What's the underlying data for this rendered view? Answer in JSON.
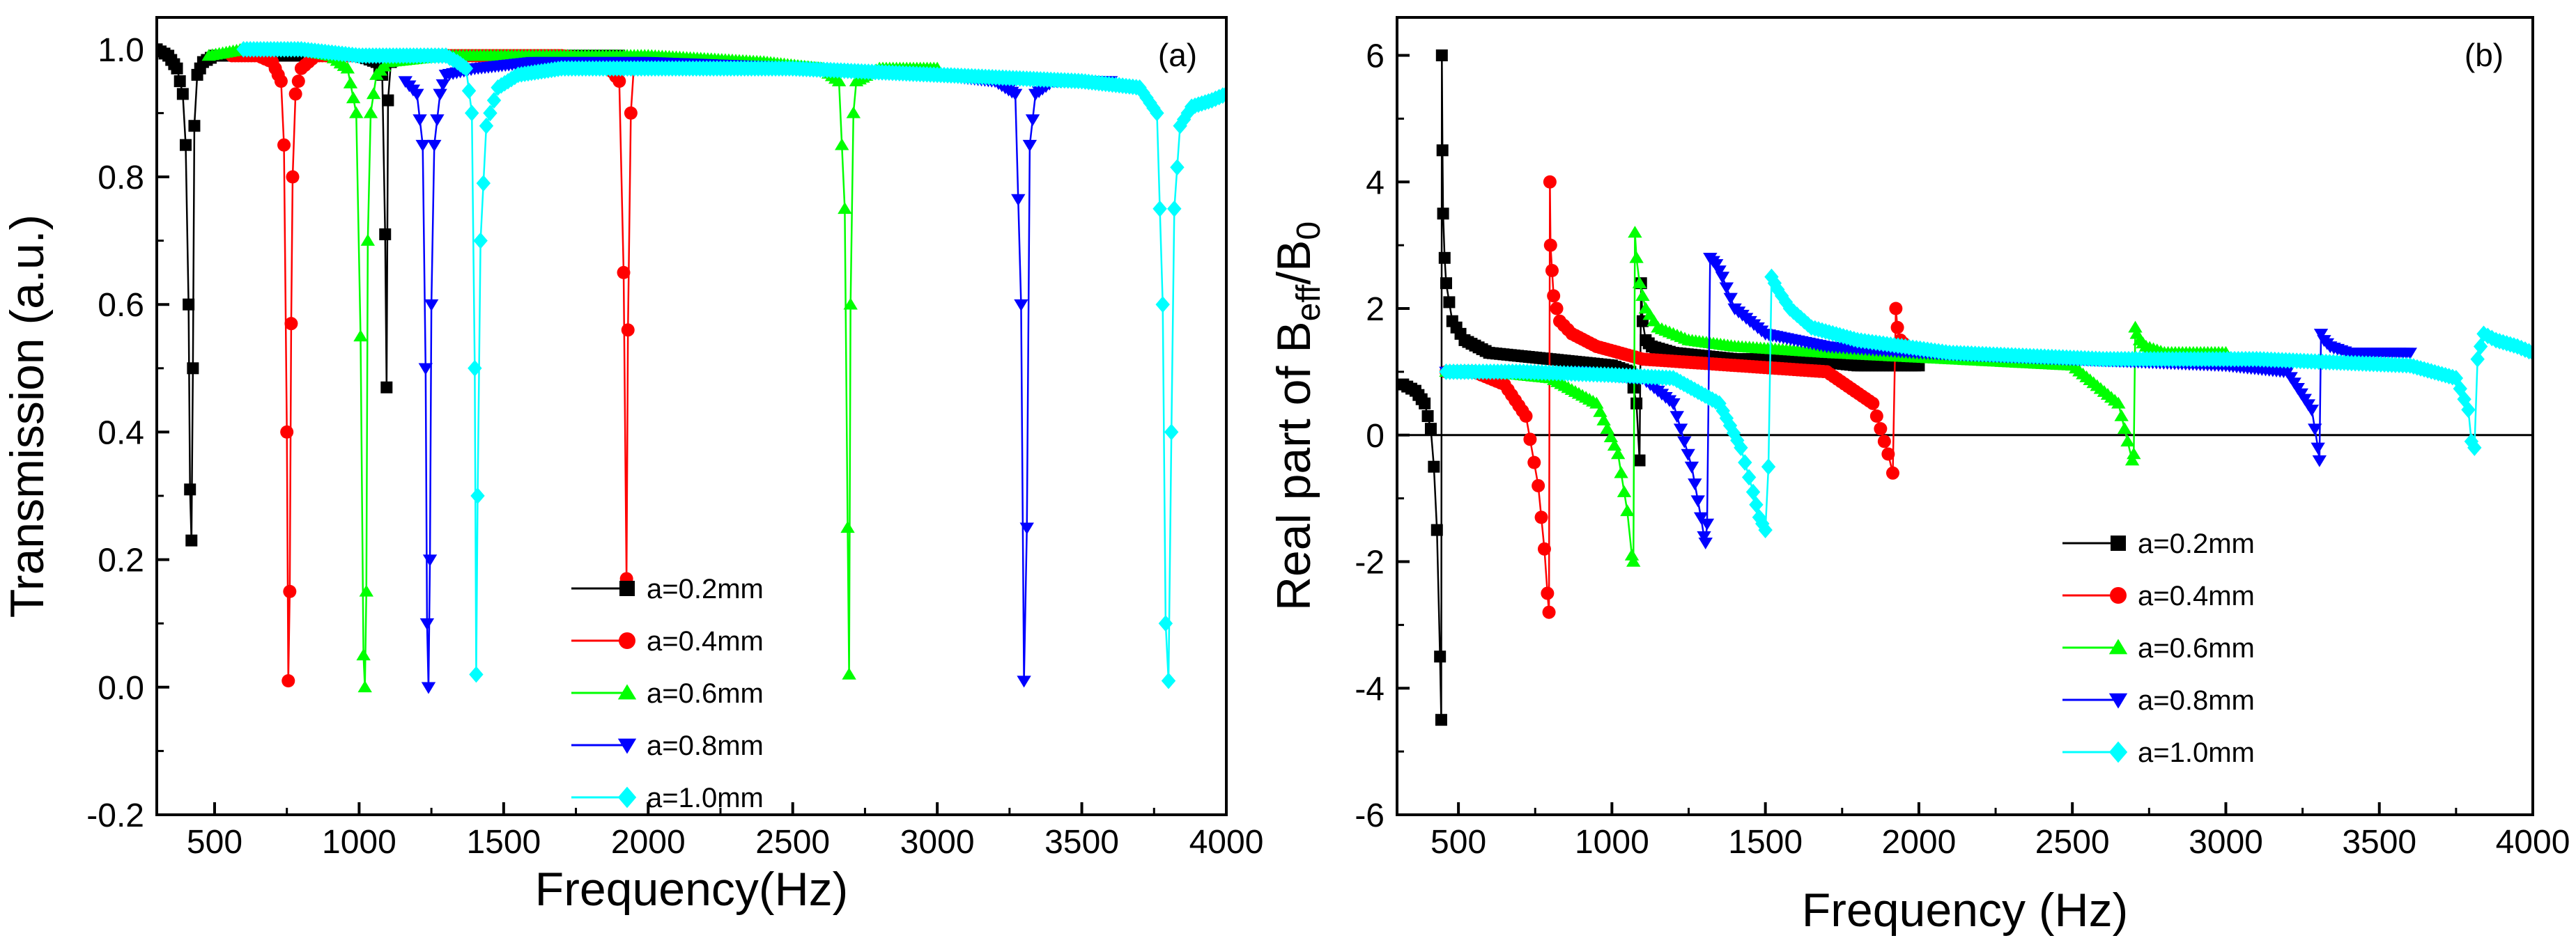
{
  "chart_data": [
    {
      "type": "line",
      "panel_label": "(a)",
      "xlabel": "Frequency(Hz)",
      "ylabel": "Transmission (a.u.)",
      "xlim": [
        300,
        4000
      ],
      "ylim": [
        -0.2,
        1.05
      ],
      "xticks": [
        500,
        1000,
        1500,
        2000,
        2500,
        3000,
        3500,
        4000
      ],
      "yticks": [
        -0.2,
        0.0,
        0.2,
        0.4,
        0.6,
        0.8,
        1.0
      ],
      "ytick_labels": [
        "-0.2",
        "0.0",
        "0.2",
        "0.4",
        "0.6",
        "0.8",
        "1.0"
      ],
      "grid": false,
      "legend_position": "bottom-center",
      "series": [
        {
          "name": "a=0.2mm",
          "color": "#000000",
          "marker": "square",
          "x": [
            300,
            340,
            370,
            390,
            400,
            410,
            415,
            420,
            425,
            430,
            440,
            460,
            500,
            600,
            800,
            1000,
            1060,
            1080,
            1090,
            1095,
            1100,
            1110,
            1130,
            1150,
            1200,
            1300,
            1400,
            1500,
            1600,
            1700,
            1800,
            1900
          ],
          "y": [
            1.0,
            0.99,
            0.97,
            0.93,
            0.85,
            0.6,
            0.31,
            0.23,
            0.5,
            0.88,
            0.96,
            0.98,
            0.99,
            0.99,
            0.99,
            0.99,
            0.98,
            0.96,
            0.71,
            0.47,
            0.92,
            0.98,
            0.99,
            0.99,
            0.99,
            0.99,
            0.99,
            0.99,
            0.99,
            0.99,
            0.99,
            0.99
          ]
        },
        {
          "name": "a=0.4mm",
          "color": "#ff0000",
          "marker": "circle",
          "x": [
            560,
            650,
            700,
            730,
            740,
            750,
            755,
            760,
            765,
            770,
            780,
            800,
            850,
            1000,
            1200,
            1500,
            1700,
            1850,
            1900,
            1915,
            1925,
            1930,
            1940,
            1950
          ],
          "y": [
            0.99,
            0.99,
            0.98,
            0.95,
            0.85,
            0.4,
            0.01,
            0.15,
            0.57,
            0.8,
            0.93,
            0.97,
            0.99,
            0.99,
            0.99,
            0.99,
            0.99,
            0.98,
            0.95,
            0.65,
            0.17,
            0.56,
            0.9,
            0.97
          ]
        },
        {
          "name": "a=0.6mm",
          "color": "#00ff00",
          "marker": "up-triangle",
          "x": [
            480,
            600,
            800,
            900,
            960,
            990,
            1005,
            1015,
            1020,
            1025,
            1030,
            1040,
            1060,
            1100,
            1300,
            1600,
            2000,
            2400,
            2600,
            2660,
            2680,
            2690,
            2695,
            2700,
            2710,
            2720,
            2800,
            3000
          ],
          "y": [
            0.99,
            1.0,
            1.0,
            0.99,
            0.97,
            0.9,
            0.55,
            0.05,
            0.0,
            0.15,
            0.7,
            0.9,
            0.96,
            0.98,
            0.99,
            0.99,
            0.99,
            0.98,
            0.97,
            0.95,
            0.75,
            0.25,
            0.02,
            0.6,
            0.9,
            0.95,
            0.97,
            0.97
          ]
        },
        {
          "name": "a=0.8mm",
          "color": "#0000ff",
          "marker": "down-triangle",
          "x": [
            1160,
            1200,
            1220,
            1230,
            1235,
            1240,
            1245,
            1250,
            1260,
            1280,
            1300,
            1400,
            1600,
            2000,
            2600,
            3000,
            3200,
            3270,
            3290,
            3300,
            3310,
            3320,
            3340,
            3400,
            3500,
            3600
          ],
          "y": [
            0.95,
            0.93,
            0.85,
            0.5,
            0.1,
            0.0,
            0.2,
            0.6,
            0.85,
            0.93,
            0.96,
            0.97,
            0.98,
            0.98,
            0.97,
            0.96,
            0.95,
            0.93,
            0.6,
            0.01,
            0.25,
            0.85,
            0.93,
            0.95,
            0.95,
            0.95
          ]
        },
        {
          "name": "a=1.0mm",
          "color": "#00ffff",
          "marker": "diamond",
          "x": [
            600,
            800,
            1000,
            1200,
            1300,
            1340,
            1370,
            1390,
            1400,
            1405,
            1410,
            1420,
            1440,
            1480,
            1550,
            1700,
            2000,
            2500,
            3000,
            3500,
            3700,
            3760,
            3780,
            3790,
            3800,
            3810,
            3820,
            3840,
            3880,
            3950,
            4000
          ],
          "y": [
            1.0,
            1.0,
            0.99,
            0.99,
            0.99,
            0.98,
            0.97,
            0.9,
            0.5,
            0.02,
            0.3,
            0.7,
            0.88,
            0.94,
            0.96,
            0.97,
            0.97,
            0.97,
            0.96,
            0.95,
            0.94,
            0.9,
            0.6,
            0.1,
            0.01,
            0.4,
            0.75,
            0.88,
            0.91,
            0.92,
            0.93
          ]
        }
      ]
    },
    {
      "type": "line",
      "panel_label": "(b)",
      "xlabel": "Frequency (Hz)",
      "ylabel": {
        "text_main": "Real part of B",
        "sub1": "eff",
        "slash": "/B",
        "sub2": "0"
      },
      "xlim": [
        300,
        4000
      ],
      "ylim": [
        -6,
        6.6
      ],
      "xticks": [
        500,
        1000,
        1500,
        2000,
        2500,
        3000,
        3500,
        4000
      ],
      "yticks": [
        -6,
        -4,
        -2,
        0,
        2,
        4,
        6
      ],
      "ytick_labels": [
        "-6",
        "-4",
        "-2",
        "0",
        "2",
        "4",
        "6"
      ],
      "zero_line": true,
      "grid": false,
      "legend_position": "bottom-right",
      "series": [
        {
          "name": "a=0.2mm",
          "color": "#000000",
          "marker": "square",
          "x": [
            320,
            360,
            390,
            410,
            420,
            430,
            440,
            444,
            446,
            448,
            450,
            455,
            460,
            480,
            520,
            600,
            800,
            1000,
            1060,
            1080,
            1090,
            1095,
            1100,
            1110,
            1130,
            1200,
            1400,
            1600,
            1800,
            2000
          ],
          "y": [
            0.8,
            0.7,
            0.5,
            0.1,
            -0.5,
            -1.5,
            -3.5,
            -4.5,
            6.0,
            4.5,
            3.5,
            2.8,
            2.4,
            1.8,
            1.5,
            1.3,
            1.2,
            1.1,
            1.0,
            0.5,
            -0.4,
            2.4,
            1.8,
            1.5,
            1.4,
            1.3,
            1.2,
            1.2,
            1.1,
            1.1
          ]
        },
        {
          "name": "a=0.4mm",
          "color": "#ff0000",
          "marker": "circle",
          "x": [
            460,
            550,
            650,
            720,
            760,
            780,
            790,
            795,
            798,
            800,
            805,
            810,
            830,
            870,
            950,
            1100,
            1400,
            1700,
            1850,
            1900,
            1915,
            1925,
            1930,
            1940,
            1960,
            2000
          ],
          "y": [
            1.0,
            1.0,
            0.8,
            0.3,
            -0.8,
            -1.8,
            -2.5,
            -2.8,
            4.0,
            3.0,
            2.6,
            2.2,
            1.8,
            1.6,
            1.4,
            1.2,
            1.1,
            1.0,
            0.5,
            -0.3,
            -0.6,
            2.0,
            1.7,
            1.5,
            1.4,
            1.3
          ]
        },
        {
          "name": "a=0.6mm",
          "color": "#00ff00",
          "marker": "up-triangle",
          "x": [
            460,
            600,
            800,
            950,
            1020,
            1050,
            1065,
            1070,
            1075,
            1080,
            1090,
            1110,
            1150,
            1250,
            1400,
            1700,
            2100,
            2500,
            2650,
            2680,
            2695,
            2700,
            2705,
            2710,
            2720,
            2740,
            2800,
            3000
          ],
          "y": [
            1.0,
            1.0,
            0.9,
            0.5,
            -0.3,
            -1.2,
            -1.9,
            -2.0,
            3.2,
            2.8,
            2.4,
            2.0,
            1.7,
            1.5,
            1.4,
            1.3,
            1.2,
            1.1,
            0.5,
            -0.1,
            -0.4,
            -0.3,
            1.7,
            1.6,
            1.5,
            1.4,
            1.3,
            1.3
          ]
        },
        {
          "name": "a=0.8mm",
          "color": "#0000ff",
          "marker": "down-triangle",
          "x": [
            460,
            700,
            900,
            1100,
            1200,
            1260,
            1290,
            1300,
            1305,
            1310,
            1320,
            1340,
            1360,
            1400,
            1500,
            1700,
            2000,
            2500,
            3000,
            3200,
            3280,
            3300,
            3305,
            3310,
            3320,
            3340,
            3400,
            3600
          ],
          "y": [
            1.0,
            1.0,
            1.0,
            0.9,
            0.5,
            -0.5,
            -1.3,
            -1.6,
            -1.7,
            -1.4,
            2.8,
            2.7,
            2.5,
            2.0,
            1.6,
            1.4,
            1.3,
            1.2,
            1.1,
            1.0,
            0.4,
            -0.2,
            -0.4,
            1.6,
            1.5,
            1.4,
            1.3,
            1.3
          ]
        },
        {
          "name": "a=1.0mm",
          "color": "#00ffff",
          "marker": "diamond",
          "x": [
            460,
            700,
            1000,
            1200,
            1350,
            1420,
            1460,
            1480,
            1490,
            1500,
            1510,
            1520,
            1540,
            1580,
            1650,
            1800,
            2100,
            2600,
            3100,
            3600,
            3750,
            3790,
            3800,
            3810,
            3820,
            3840,
            3880,
            3950,
            4000
          ],
          "y": [
            1.0,
            1.0,
            0.95,
            0.9,
            0.5,
            -0.2,
            -0.9,
            -1.3,
            -1.4,
            -1.5,
            -0.5,
            2.5,
            2.3,
            2.0,
            1.7,
            1.5,
            1.3,
            1.2,
            1.2,
            1.1,
            0.9,
            0.4,
            -0.1,
            -0.2,
            1.2,
            1.6,
            1.5,
            1.4,
            1.3
          ]
        }
      ]
    }
  ]
}
